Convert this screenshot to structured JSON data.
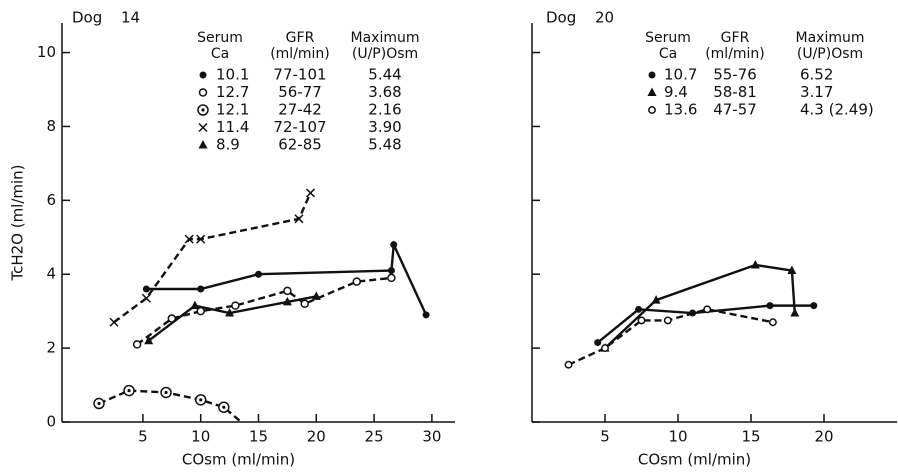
{
  "chart_data": [
    {
      "type": "line",
      "title": "Dog 14",
      "y_label": "TcH2O (ml/min)",
      "x_label": "COsm (ml/min)",
      "xlim": [
        -2,
        32
      ],
      "xticks": [
        5,
        10,
        15,
        20,
        25,
        30
      ],
      "ylim": [
        0,
        10.8
      ],
      "yticks": [
        0,
        2,
        4,
        6,
        8,
        10
      ],
      "ytick_labels": true,
      "legend_headers": [
        [
          "Serum",
          "Ca"
        ],
        [
          "GFR",
          "(ml/min)"
        ],
        [
          "Maximum",
          "(U/P)Osm"
        ]
      ],
      "series": [
        {
          "name": "10.1",
          "gfr": "77-101",
          "max": "5.44",
          "marker": "filled-circle",
          "dashed": false,
          "color": "#111",
          "x": [
            5.3,
            10,
            15,
            26.5,
            26.7,
            29.5
          ],
          "values": [
            3.6,
            3.6,
            4.0,
            4.1,
            4.8,
            2.9
          ]
        },
        {
          "name": "12.7",
          "gfr": "56-77",
          "max": "3.68",
          "marker": "open-circle",
          "dashed": true,
          "color": "#111",
          "x": [
            4.5,
            7.5,
            10,
            13,
            17.5,
            19,
            23.5,
            26.5
          ],
          "values": [
            2.1,
            2.8,
            3.0,
            3.15,
            3.55,
            3.2,
            3.8,
            3.9
          ]
        },
        {
          "name": "12.1",
          "gfr": "27-42",
          "max": "2.16",
          "marker": "dot-circle",
          "dashed": true,
          "color": "#111",
          "x": [
            1.2,
            3.8,
            7,
            10,
            12,
            13.5
          ],
          "values": [
            0.5,
            0.85,
            0.8,
            0.6,
            0.4,
            0
          ]
        },
        {
          "name": "11.4",
          "gfr": "72-107",
          "max": "3.90",
          "marker": "x",
          "dashed": true,
          "color": "#111",
          "x": [
            2.5,
            5.3,
            9,
            10,
            18.5,
            19.5
          ],
          "values": [
            2.7,
            3.35,
            4.95,
            4.95,
            5.5,
            6.2
          ]
        },
        {
          "name": "8.9",
          "gfr": "62-85",
          "max": "5.48",
          "marker": "triangle",
          "dashed": false,
          "color": "#111",
          "x": [
            5.5,
            9.5,
            12.5,
            17.5,
            20
          ],
          "values": [
            2.2,
            3.15,
            2.95,
            3.25,
            3.4
          ]
        }
      ]
    },
    {
      "type": "line",
      "title": "Dog 20",
      "x_label": "COsm (ml/min)",
      "xlim": [
        0,
        25
      ],
      "xticks": [
        5,
        10,
        15,
        20
      ],
      "ylim": [
        0,
        10.8
      ],
      "yticks": [
        0,
        2,
        4,
        6,
        8,
        10
      ],
      "ytick_labels": false,
      "legend_headers": [
        [
          "Serum",
          "Ca"
        ],
        [
          "GFR",
          "(ml/min)"
        ],
        [
          "Maximum",
          "(U/P)Osm"
        ]
      ],
      "series": [
        {
          "name": "10.7",
          "gfr": "55-76",
          "max": "6.52",
          "marker": "filled-circle",
          "dashed": false,
          "color": "#111",
          "x": [
            4.5,
            7.3,
            11,
            16.3,
            19.3
          ],
          "values": [
            2.15,
            3.05,
            2.95,
            3.15,
            3.15
          ]
        },
        {
          "name": "9.4",
          "gfr": "58-81",
          "max": "3.17",
          "marker": "triangle",
          "dashed": false,
          "color": "#111",
          "x": [
            5,
            8.5,
            15.3,
            17.8,
            18
          ],
          "values": [
            2.0,
            3.3,
            4.25,
            4.1,
            2.95
          ]
        },
        {
          "name": "13.6",
          "gfr": "47-57",
          "max": "4.3 (2.49)",
          "marker": "open-circle-stem",
          "dashed": true,
          "color": "#111",
          "x": [
            2.5,
            5,
            7.5,
            9.3,
            12,
            16.5
          ],
          "values": [
            1.55,
            2.0,
            2.75,
            2.75,
            3.05,
            2.7
          ]
        }
      ]
    }
  ]
}
